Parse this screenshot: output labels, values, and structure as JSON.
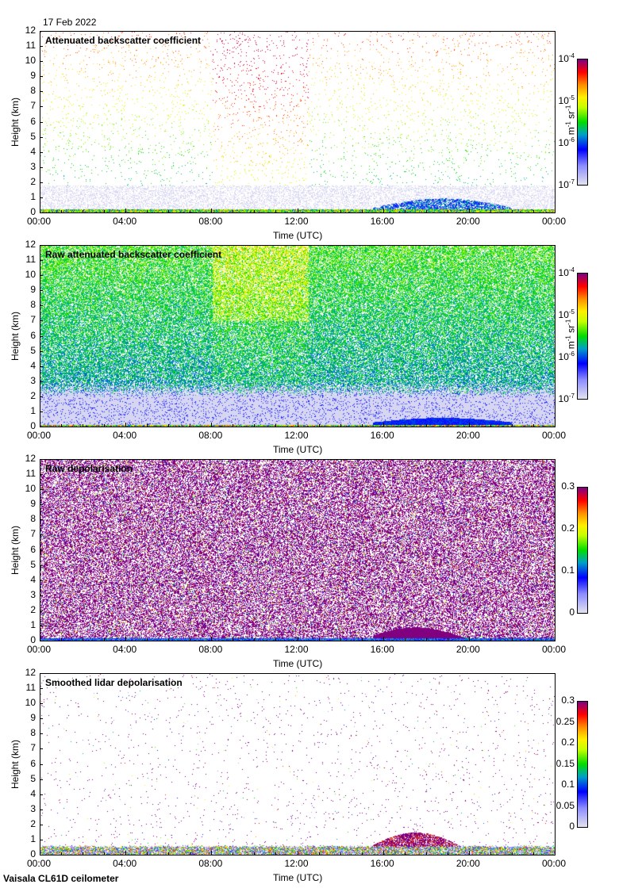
{
  "header": {
    "date": "17 Feb 2022"
  },
  "footer": {
    "instrument": "Vaisala CL61D ceilometer"
  },
  "chart_data": [
    {
      "type": "heatmap",
      "title": "Attenuated backscatter coefficient",
      "xlabel": "Time (UTC)",
      "ylabel": "Height (km)",
      "xlim": [
        0,
        24
      ],
      "ylim": [
        0,
        12
      ],
      "xticks": [
        "00:00",
        "04:00",
        "08:00",
        "12:00",
        "16:00",
        "20:00",
        "00:00"
      ],
      "yticks": [
        "0",
        "1",
        "2",
        "3",
        "4",
        "5",
        "6",
        "7",
        "8",
        "9",
        "10",
        "11",
        "12"
      ],
      "colorbar": {
        "scale": "log",
        "range": [
          1e-07,
          0.0001
        ],
        "ticks": [
          {
            "base": "10",
            "exp": "-7"
          },
          {
            "base": "10",
            "exp": "-6"
          },
          {
            "base": "10",
            "exp": "-5"
          },
          {
            "base": "10",
            "exp": "-4"
          }
        ],
        "units": {
          "m": "m",
          "m_exp": "-1",
          "sr": "sr",
          "sr_exp": "-1"
        }
      },
      "features": {
        "aerosol_layer_top_km": 0.3,
        "boundary_layer_top_km_16_22h": 1.0,
        "high_signal_window_h": [
          8,
          12
        ]
      }
    },
    {
      "type": "heatmap",
      "title": "Raw attenuated backscatter coefficient",
      "xlabel": "Time (UTC)",
      "ylabel": "Height (km)",
      "xlim": [
        0,
        24
      ],
      "ylim": [
        0,
        12
      ],
      "xticks": [
        "00:00",
        "04:00",
        "08:00",
        "12:00",
        "16:00",
        "20:00",
        "00:00"
      ],
      "yticks": [
        "0",
        "1",
        "2",
        "3",
        "4",
        "5",
        "6",
        "7",
        "8",
        "9",
        "10",
        "11",
        "12"
      ],
      "colorbar": {
        "scale": "log",
        "range": [
          1e-07,
          0.0001
        ],
        "ticks": [
          {
            "base": "10",
            "exp": "-7"
          },
          {
            "base": "10",
            "exp": "-6"
          },
          {
            "base": "10",
            "exp": "-5"
          },
          {
            "base": "10",
            "exp": "-4"
          }
        ],
        "units": {
          "m": "m",
          "m_exp": "-1",
          "sr": "sr",
          "sr_exp": "-1"
        }
      },
      "features": {
        "low_noise_layer_top_km": 2.0,
        "high_signal_window_h": [
          8,
          12
        ]
      }
    },
    {
      "type": "heatmap",
      "title": "Raw depolarisation",
      "xlabel": "Time (UTC)",
      "ylabel": "Height (km)",
      "xlim": [
        0,
        24
      ],
      "ylim": [
        0,
        12
      ],
      "xticks": [
        "00:00",
        "04:00",
        "08:00",
        "12:00",
        "16:00",
        "20:00",
        "00:00"
      ],
      "yticks": [
        "0",
        "1",
        "2",
        "3",
        "4",
        "5",
        "6",
        "7",
        "8",
        "9",
        "10",
        "11",
        "12"
      ],
      "colorbar": {
        "scale": "linear",
        "range": [
          0,
          0.3
        ],
        "ticks": [
          "0",
          "0.1",
          "0.2",
          "0.3"
        ]
      },
      "features": {
        "high_depol_layer_h": [
          15,
          20
        ],
        "high_depol_layer_top_km": 0.8
      }
    },
    {
      "type": "heatmap",
      "title": "Smoothed lidar depolarisation",
      "xlabel": "Time (UTC)",
      "ylabel": "Height (km)",
      "xlim": [
        0,
        24
      ],
      "ylim": [
        0,
        12
      ],
      "xticks": [
        "00:00",
        "04:00",
        "08:00",
        "12:00",
        "16:00",
        "20:00",
        "00:00"
      ],
      "yticks": [
        "0",
        "1",
        "2",
        "3",
        "4",
        "5",
        "6",
        "7",
        "8",
        "9",
        "10",
        "11",
        "12"
      ],
      "colorbar": {
        "scale": "linear",
        "range": [
          0,
          0.3
        ],
        "ticks": [
          "0",
          "0.05",
          "0.1",
          "0.15",
          "0.2",
          "0.25",
          "0.3"
        ]
      },
      "features": {
        "high_depol_layer_h": [
          15,
          20
        ],
        "high_depol_layer_top_km": 1.3
      }
    }
  ]
}
